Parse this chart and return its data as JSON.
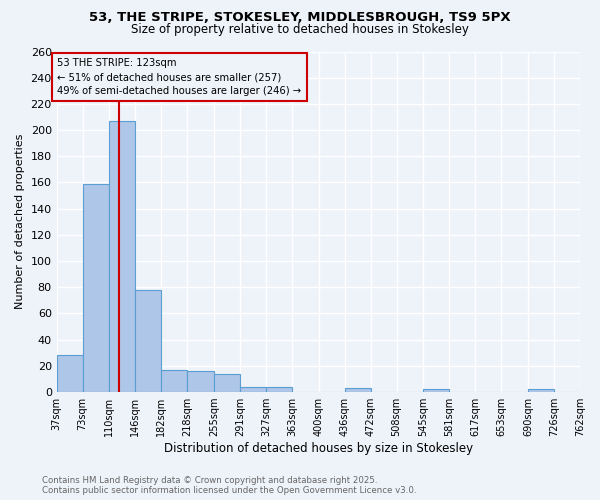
{
  "title": "53, THE STRIPE, STOKESLEY, MIDDLESBROUGH, TS9 5PX",
  "subtitle": "Size of property relative to detached houses in Stokesley",
  "xlabel": "Distribution of detached houses by size in Stokesley",
  "ylabel": "Number of detached properties",
  "bar_edges": [
    37,
    73,
    110,
    146,
    182,
    218,
    255,
    291,
    327,
    363,
    400,
    436,
    472,
    508,
    545,
    581,
    617,
    653,
    690,
    726,
    762
  ],
  "bar_heights": [
    28,
    159,
    207,
    78,
    17,
    16,
    14,
    4,
    4,
    0,
    0,
    3,
    0,
    0,
    2,
    0,
    0,
    0,
    2,
    0
  ],
  "bar_color": "#aec6e8",
  "bar_edge_color": "#5a9ed4",
  "vline_x": 123,
  "vline_color": "#cc0000",
  "annotation_text": "53 THE STRIPE: 123sqm\n← 51% of detached houses are smaller (257)\n49% of semi-detached houses are larger (246) →",
  "annotation_box_color": "#cc0000",
  "ylim": [
    0,
    260
  ],
  "yticks": [
    0,
    20,
    40,
    60,
    80,
    100,
    120,
    140,
    160,
    180,
    200,
    220,
    240,
    260
  ],
  "tick_labels": [
    "37sqm",
    "73sqm",
    "110sqm",
    "146sqm",
    "182sqm",
    "218sqm",
    "255sqm",
    "291sqm",
    "327sqm",
    "363sqm",
    "400sqm",
    "436sqm",
    "472sqm",
    "508sqm",
    "545sqm",
    "581sqm",
    "617sqm",
    "653sqm",
    "690sqm",
    "726sqm",
    "762sqm"
  ],
  "footer_text": "Contains HM Land Registry data © Crown copyright and database right 2025.\nContains public sector information licensed under the Open Government Licence v3.0.",
  "bg_color": "#eef2f9",
  "grid_color": "#ffffff"
}
